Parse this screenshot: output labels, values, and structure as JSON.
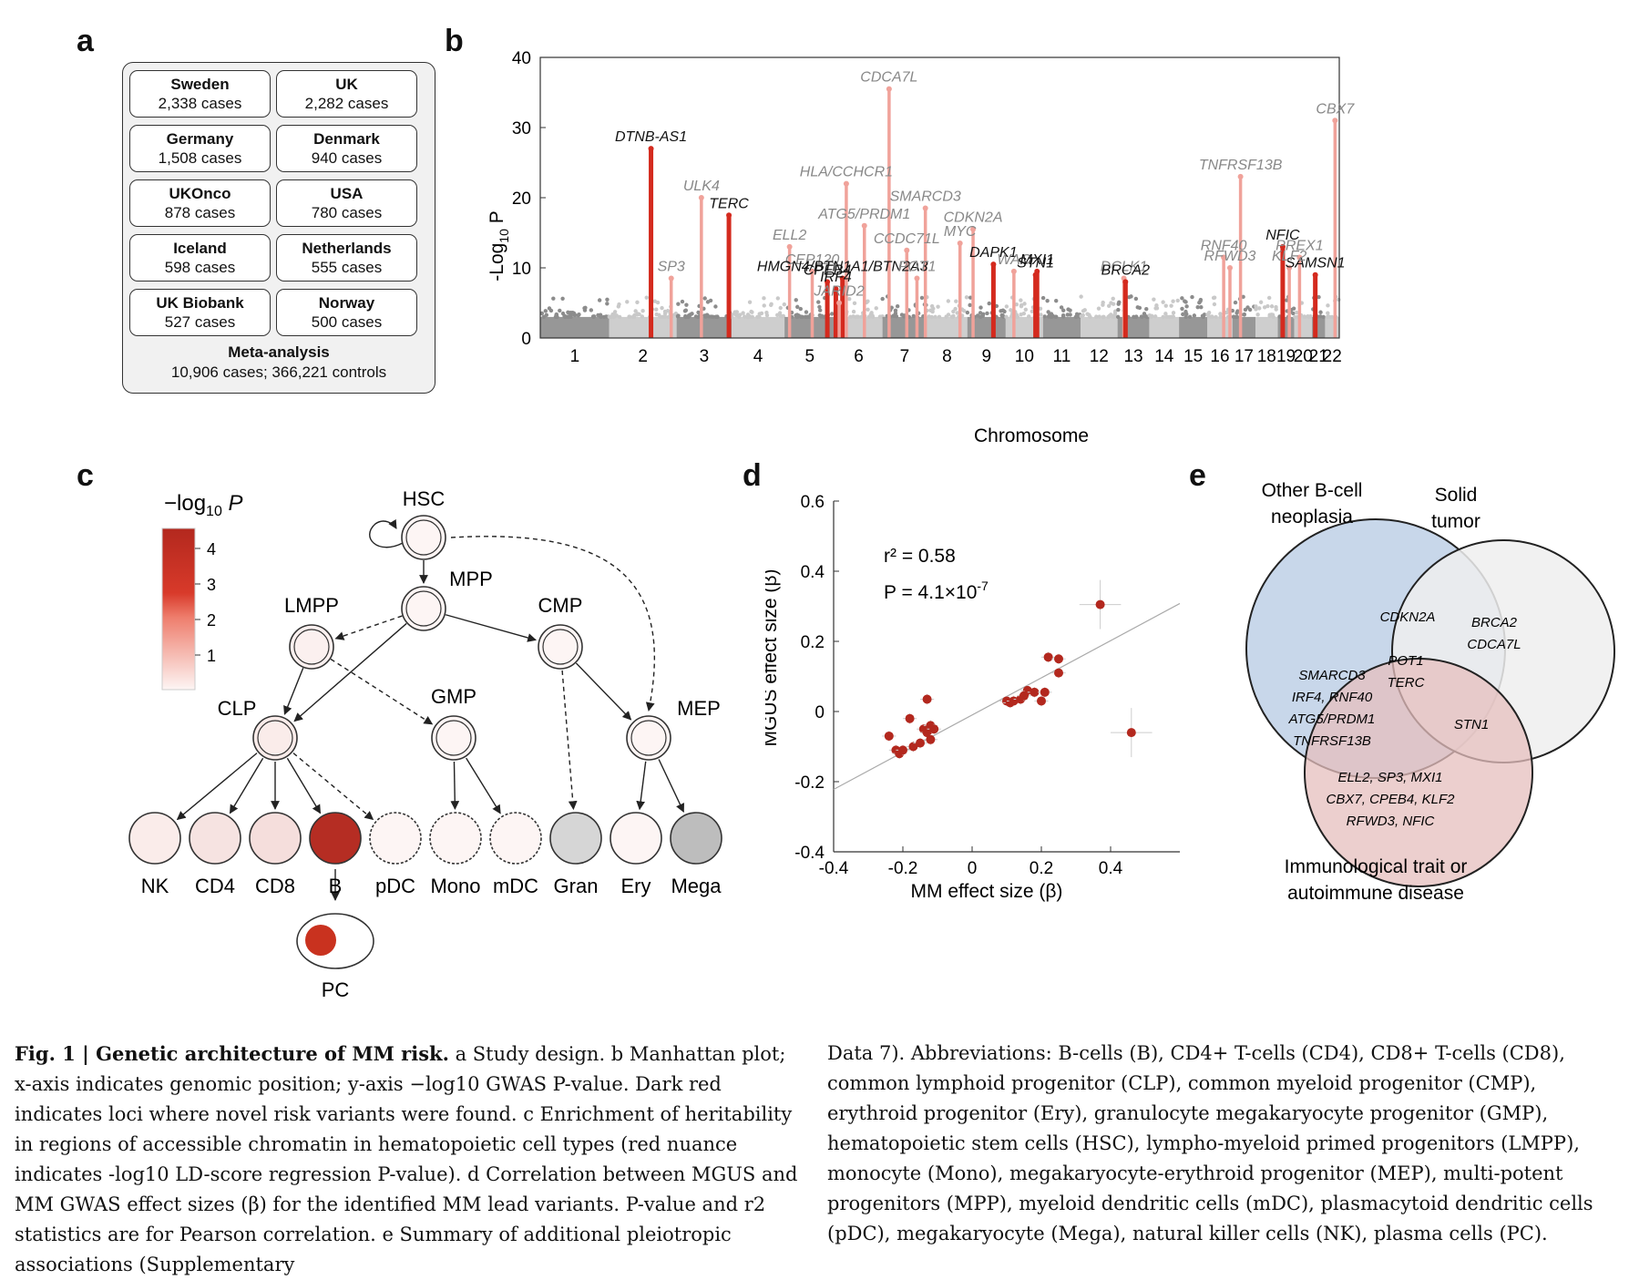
{
  "panels": {
    "a": "a",
    "b": "b",
    "c": "c",
    "d": "d",
    "e": "e"
  },
  "panel_a": {
    "cohorts": [
      {
        "name": "Sweden",
        "cases": "2,338 cases"
      },
      {
        "name": "UK",
        "cases": "2,282 cases"
      },
      {
        "name": "Germany",
        "cases": "1,508 cases"
      },
      {
        "name": "Denmark",
        "cases": "940 cases"
      },
      {
        "name": "UKOnco",
        "cases": "878 cases"
      },
      {
        "name": "USA",
        "cases": "780 cases"
      },
      {
        "name": "Iceland",
        "cases": "598 cases"
      },
      {
        "name": "Netherlands",
        "cases": "555 cases"
      },
      {
        "name": "UK Biobank",
        "cases": "527 cases"
      },
      {
        "name": "Norway",
        "cases": "500 cases"
      }
    ],
    "meta_title": "Meta-analysis",
    "meta_detail": "10,906 cases; 366,221 controls"
  },
  "panel_b": {
    "ylabel_prefix": "-Log",
    "ylabel_sub": "10",
    "ylabel_suffix": " P",
    "xlabel": "Chromosome",
    "ylim": [
      0,
      40
    ],
    "yticks": [
      "0",
      "10",
      "20",
      "30",
      "40"
    ],
    "chromosomes": [
      "1",
      "2",
      "3",
      "4",
      "5",
      "6",
      "7",
      "8",
      "9",
      "10",
      "11",
      "12",
      "13",
      "14",
      "15",
      "16",
      "17",
      "18",
      "19",
      "20",
      "21",
      "22"
    ],
    "peaks": [
      {
        "label": "DTNB-AS1",
        "chr": "2",
        "p": 27,
        "novel": true
      },
      {
        "label": "SP3",
        "chr": "2",
        "p": 8.5,
        "novel": false
      },
      {
        "label": "ULK4",
        "chr": "3",
        "p": 20,
        "novel": false
      },
      {
        "label": "TERC",
        "chr": "3",
        "p": 17.5,
        "novel": true
      },
      {
        "label": "ELL2",
        "chr": "5",
        "p": 13,
        "novel": false
      },
      {
        "label": "CEP120",
        "chr": "5",
        "p": 9.5,
        "novel": false
      },
      {
        "label": "CPEB4",
        "chr": "5",
        "p": 8,
        "novel": true
      },
      {
        "label": "HMGN4/BTN1A1/BTN2A3",
        "chr": "6",
        "p": 8.5,
        "novel": true
      },
      {
        "label": "HLA/CCHCR1",
        "chr": "6",
        "p": 22,
        "novel": false
      },
      {
        "label": "ATG5/PRDM1",
        "chr": "6",
        "p": 16,
        "novel": false
      },
      {
        "label": "IRF4",
        "chr": "6",
        "p": 7,
        "novel": true
      },
      {
        "label": "JARID2",
        "chr": "6",
        "p": 5,
        "novel": false
      },
      {
        "label": "CDCA7L",
        "chr": "7",
        "p": 35.5,
        "novel": false
      },
      {
        "label": "SMARCD3",
        "chr": "7",
        "p": 18.5,
        "novel": false
      },
      {
        "label": "CCDC71L",
        "chr": "7",
        "p": 12.5,
        "novel": false
      },
      {
        "label": "POT1",
        "chr": "7",
        "p": 8.5,
        "novel": false
      },
      {
        "label": "CDKN2A",
        "chr": "9",
        "p": 15.5,
        "novel": false
      },
      {
        "label": "MYC",
        "chr": "8",
        "p": 13.5,
        "novel": false
      },
      {
        "label": "DAPK1",
        "chr": "9",
        "p": 10.5,
        "novel": true
      },
      {
        "label": "WAC",
        "chr": "10",
        "p": 9.5,
        "novel": false
      },
      {
        "label": "STN1",
        "chr": "10",
        "p": 9,
        "novel": true
      },
      {
        "label": "MXI1",
        "chr": "10",
        "p": 9.5,
        "novel": true
      },
      {
        "label": "DCLK1",
        "chr": "13",
        "p": 8.5,
        "novel": false
      },
      {
        "label": "BRCA2",
        "chr": "13",
        "p": 8,
        "novel": true
      },
      {
        "label": "TNFRSF13B",
        "chr": "17",
        "p": 23,
        "novel": false
      },
      {
        "label": "RNF40",
        "chr": "16",
        "p": 11.5,
        "novel": false
      },
      {
        "label": "RFWD3",
        "chr": "16",
        "p": 10,
        "novel": false
      },
      {
        "label": "NFIC",
        "chr": "19",
        "p": 13,
        "novel": true
      },
      {
        "label": "SAMSN1",
        "chr": "21",
        "p": 9,
        "novel": true
      },
      {
        "label": "KLF2",
        "chr": "19",
        "p": 10,
        "novel": false
      },
      {
        "label": "PREX1",
        "chr": "20",
        "p": 11.5,
        "novel": false
      },
      {
        "label": "CBX7",
        "chr": "22",
        "p": 31,
        "novel": false
      }
    ]
  },
  "panel_c": {
    "legend_title_pre": "−log",
    "legend_title_sub": "10",
    "legend_title_post": " P",
    "legend_ticks": [
      "4",
      "3",
      "2",
      "1"
    ],
    "progenitors": [
      {
        "label": "HSC",
        "level": 0
      },
      {
        "label": "MPP",
        "level": 0
      },
      {
        "label": "LMPP",
        "level": 0.1
      },
      {
        "label": "CMP",
        "level": 0
      },
      {
        "label": "CLP",
        "level": 0.2
      },
      {
        "label": "GMP",
        "level": 0
      },
      {
        "label": "MEP",
        "level": 0
      }
    ],
    "terminal": [
      {
        "label": "NK",
        "level": 0.2
      },
      {
        "label": "CD4",
        "level": 0.4
      },
      {
        "label": "CD8",
        "level": 0.5
      },
      {
        "label": "B",
        "level": 4.4
      },
      {
        "label": "pDC",
        "level": 0
      },
      {
        "label": "Mono",
        "level": 0
      },
      {
        "label": "mDC",
        "level": 0
      },
      {
        "label": "Gran",
        "level": 0
      },
      {
        "label": "Ery",
        "level": 0
      },
      {
        "label": "Mega",
        "level": 0
      }
    ],
    "pc_label": "PC",
    "colors": {
      "high": "#b3281e",
      "low": "#fdf5f4"
    }
  },
  "panel_d": {
    "chart_data": {
      "type": "scatter",
      "xlabel": "MM effect size (β)",
      "ylabel": "MGUS effect size (β)",
      "xlim": [
        -0.4,
        0.6
      ],
      "ylim": [
        -0.4,
        0.6
      ],
      "xticks": [
        "-0.4",
        "-0.2",
        "0",
        "0.2",
        "0.4"
      ],
      "yticks": [
        "-0.4",
        "-0.2",
        "0",
        "0.2",
        "0.4",
        "0.6"
      ],
      "annotation_r2": "r² = 0.58",
      "annotation_p_pre": "P = 4.1×10",
      "annotation_p_exp": "-7",
      "points": [
        [
          -0.24,
          -0.07
        ],
        [
          -0.22,
          -0.11
        ],
        [
          -0.21,
          -0.12
        ],
        [
          -0.2,
          -0.11
        ],
        [
          -0.18,
          -0.02
        ],
        [
          -0.17,
          -0.1
        ],
        [
          -0.15,
          -0.09
        ],
        [
          -0.14,
          -0.05
        ],
        [
          -0.13,
          -0.06
        ],
        [
          -0.12,
          -0.04
        ],
        [
          -0.11,
          -0.05
        ],
        [
          -0.13,
          0.035
        ],
        [
          -0.12,
          -0.08
        ],
        [
          0.1,
          0.03
        ],
        [
          0.11,
          0.025
        ],
        [
          0.12,
          0.03
        ],
        [
          0.14,
          0.035
        ],
        [
          0.16,
          0.06
        ],
        [
          0.15,
          0.045
        ],
        [
          0.18,
          0.055
        ],
        [
          0.2,
          0.03
        ],
        [
          0.21,
          0.055
        ],
        [
          0.22,
          0.155
        ],
        [
          0.25,
          0.15
        ],
        [
          0.25,
          0.11
        ],
        [
          0.37,
          0.305
        ],
        [
          0.46,
          -0.06
        ]
      ],
      "fit": {
        "slope": 0.53,
        "intercept": -0.01
      },
      "color": "#b3281e"
    }
  },
  "panel_e": {
    "labels": {
      "b_cell": [
        "Other B-cell",
        "neoplasia"
      ],
      "solid": [
        "Solid",
        "tumor"
      ],
      "immune": [
        "Immunological trait or",
        "autoimmune disease"
      ]
    },
    "regions": {
      "b_solid": [
        "CDKN2A"
      ],
      "solid_only": [
        "BRCA2",
        "CDCA7L"
      ],
      "all_three": [
        "POT1",
        "TERC"
      ],
      "b_immune": [
        "SMARCD3",
        "IRF4, RNF40",
        "ATG5/PRDM1",
        "TNFRSF13B"
      ],
      "solid_immune": [
        "STN1"
      ],
      "immune_only": [
        "ELL2, SP3, MXI1",
        "CBX7, CPEB4, KLF2",
        "RFWD3, NFIC"
      ]
    },
    "colors": {
      "b_cell": "#c8d7ea",
      "solid": "#eeeeee",
      "immune": "#e5bfbe"
    }
  },
  "caption": {
    "lead": "Fig. 1 | Genetic architecture of MM risk.",
    "col1": "a Study design. b Manhattan plot; x-axis indicates genomic position; y-axis −log10 GWAS P-value. Dark red indicates loci where novel risk variants were found. c Enrichment of heritability in regions of accessible chromatin in hematopoietic cell types (red nuance indicates -log10 LD-score regression P-value). d Correlation between MGUS and MM GWAS effect sizes (β) for the identified MM lead variants. P-value and r2 statistics are for Pearson correlation. e Summary of additional pleiotropic associations (Supplementary",
    "col2": "Data 7). Abbreviations: B-cells (B), CD4+ T-cells (CD4), CD8+ T-cells (CD8), common lymphoid progenitor (CLP), common myeloid progenitor (CMP), erythroid progenitor (Ery), granulocyte megakaryocyte progenitor (GMP), hematopoietic stem cells (HSC), lympho-myeloid primed progenitors (LMPP), monocyte (Mono), megakaryocyte-erythroid progenitor (MEP), multi-potent progenitors (MPP), myeloid dendritic cells (mDC), plasmacytoid dendritic cells (pDC), megakaryocyte (Mega), natural killer cells (NK), plasma cells (PC)."
  }
}
